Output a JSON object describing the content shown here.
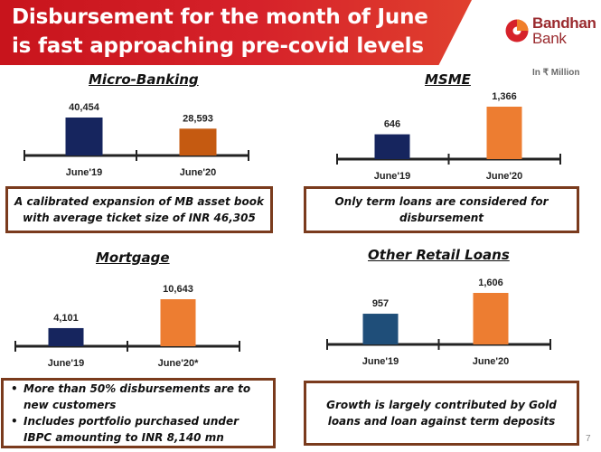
{
  "slide": {
    "title": "Disbursement for the month of June\nis fast approaching pre-covid levels",
    "logo_line1": "Bandhan",
    "logo_line2": "Bank",
    "unit_note": "In ₹ Million",
    "page_number": "7"
  },
  "colors": {
    "title_red": "#d6222a",
    "navy": "#16255e",
    "dark_orange": "#c55a11",
    "orange": "#ed7d31",
    "steel_blue": "#1f4e79",
    "box_border": "#7a3b1d",
    "logo_red": "#9a2a2e"
  },
  "notes": {
    "micro_banking": "A calibrated expansion of MB asset book with average ticket size of INR 46,305",
    "msme": "Only term loans are considered for disbursement",
    "mortgage": [
      "More than 50% disbursements are to new customers",
      "Includes portfolio purchased under IBPC amounting to INR 8,140 mn"
    ],
    "other_retail": "Growth is largely contributed by Gold loans and loan against term deposits"
  },
  "chart_data": [
    {
      "type": "bar",
      "title": "Micro-Banking",
      "categories": [
        "June'19",
        "June'20"
      ],
      "values": [
        40454,
        28593
      ],
      "value_labels": [
        "40,454",
        "28,593"
      ],
      "bar_colors": [
        "#16255e",
        "#c55a11"
      ]
    },
    {
      "type": "bar",
      "title": "MSME",
      "categories": [
        "June'19",
        "June'20"
      ],
      "values": [
        646,
        1366
      ],
      "value_labels": [
        "646",
        "1,366"
      ],
      "bar_colors": [
        "#16255e",
        "#ed7d31"
      ]
    },
    {
      "type": "bar",
      "title": "Mortgage",
      "categories": [
        "June'19",
        "June'20*"
      ],
      "values": [
        4101,
        10643
      ],
      "value_labels": [
        "4,101",
        "10,643"
      ],
      "bar_colors": [
        "#16255e",
        "#ed7d31"
      ]
    },
    {
      "type": "bar",
      "title": "Other Retail Loans",
      "categories": [
        "June'19",
        "June'20"
      ],
      "values": [
        957,
        1606
      ],
      "value_labels": [
        "957",
        "1,606"
      ],
      "bar_colors": [
        "#1f4e79",
        "#ed7d31"
      ]
    }
  ]
}
